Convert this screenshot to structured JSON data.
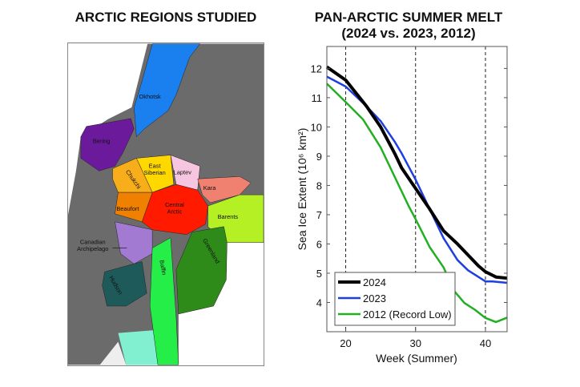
{
  "left_panel": {
    "title": "ARCTIC REGIONS STUDIED",
    "regions": [
      {
        "name": "Okhotsk",
        "color": "#1a7fef"
      },
      {
        "name": "Bering",
        "color": "#6a1a9a"
      },
      {
        "name": "East Siberian",
        "color": "#ffd800"
      },
      {
        "name": "Laptev",
        "color": "#f6c6e0"
      },
      {
        "name": "Chukchi",
        "color": "#f7ae1a"
      },
      {
        "name": "Kara",
        "color": "#f08070"
      },
      {
        "name": "Central Arctic",
        "color": "#ff1a00"
      },
      {
        "name": "Beaufort",
        "color": "#f08000"
      },
      {
        "name": "Barents",
        "color": "#b4f024"
      },
      {
        "name": "Canadian Archipelago",
        "color": "#a27ad2"
      },
      {
        "name": "Greenland",
        "color": "#2e8b1a"
      },
      {
        "name": "Baffin",
        "color": "#26ee48"
      },
      {
        "name": "Hudson",
        "color": "#1e5a5a"
      }
    ],
    "land_color": "#6b6b6b"
  },
  "chart_data": {
    "type": "line",
    "title": "PAN-ARCTIC SUMMER MELT",
    "subtitle": "(2024 vs. 2023, 2012)",
    "xlabel": "Week (Summer)",
    "ylabel": "Sea Ice Extent (10⁶ km²)",
    "xlim": [
      17.3,
      43.1
    ],
    "ylim": [
      3.0,
      12.75
    ],
    "xticks": [
      20,
      30,
      40
    ],
    "yticks": [
      4,
      5,
      6,
      7,
      8,
      9,
      10,
      11,
      12
    ],
    "vlines": [
      20,
      30,
      40
    ],
    "grid": false,
    "legend_position": "bottom-left",
    "series": [
      {
        "name": "2024",
        "color": "#000000",
        "x": [
          17.3,
          20,
          22,
          23,
          25,
          27,
          28,
          30,
          32,
          34,
          36,
          38,
          39,
          40,
          41.5,
          43.1
        ],
        "y": [
          12.05,
          11.6,
          11.0,
          10.7,
          10.0,
          9.1,
          8.6,
          7.9,
          7.2,
          6.45,
          6.0,
          5.5,
          5.25,
          5.05,
          4.87,
          4.83
        ]
      },
      {
        "name": "2023",
        "color": "#1f3fe0",
        "x": [
          17.3,
          20,
          23,
          25,
          27,
          28,
          30,
          32,
          34,
          36,
          37.5,
          40,
          41,
          43.1
        ],
        "y": [
          11.72,
          11.38,
          10.7,
          10.2,
          9.5,
          9.1,
          8.2,
          7.2,
          6.2,
          5.45,
          5.1,
          4.72,
          4.72,
          4.67
        ]
      },
      {
        "name": "2012 (Record Low)",
        "color": "#22b022",
        "x": [
          17.3,
          20,
          22.5,
          25,
          27,
          29,
          30,
          32,
          34,
          35.5,
          37,
          38.5,
          40,
          41.5,
          43.1
        ],
        "y": [
          11.48,
          10.85,
          10.25,
          9.3,
          8.3,
          7.3,
          6.85,
          5.9,
          5.2,
          4.4,
          3.98,
          3.75,
          3.47,
          3.33,
          3.48
        ]
      }
    ]
  }
}
